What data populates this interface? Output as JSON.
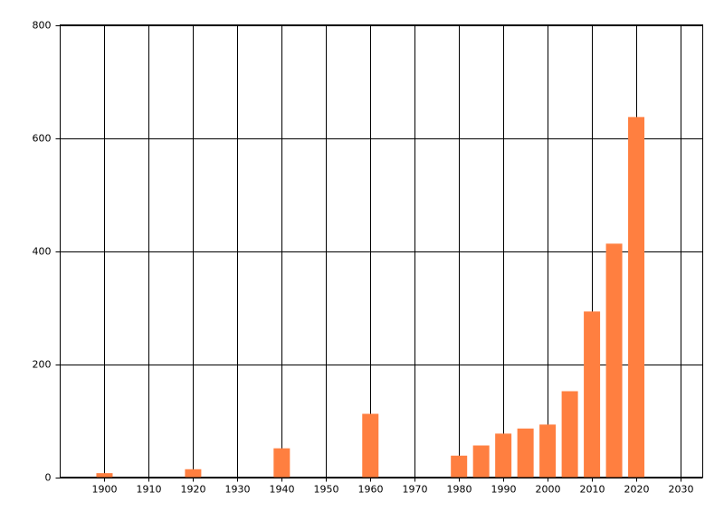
{
  "chart_data": {
    "type": "bar",
    "x": [
      1900,
      1920,
      1940,
      1960,
      1980,
      1985,
      1990,
      1995,
      2000,
      2005,
      2010,
      2015,
      2020
    ],
    "values": [
      7,
      14,
      51,
      112,
      38,
      56,
      77,
      86,
      93,
      152,
      293,
      413,
      637
    ],
    "color": "#ff7f40",
    "xlim": [
      1890,
      2035
    ],
    "xticks": [
      1900,
      1910,
      1920,
      1930,
      1940,
      1950,
      1960,
      1970,
      1980,
      1990,
      2000,
      2010,
      2020,
      2030
    ],
    "ylim": [
      0,
      800
    ],
    "yticks": [
      0,
      200,
      400,
      600,
      800
    ],
    "grid": true
  }
}
